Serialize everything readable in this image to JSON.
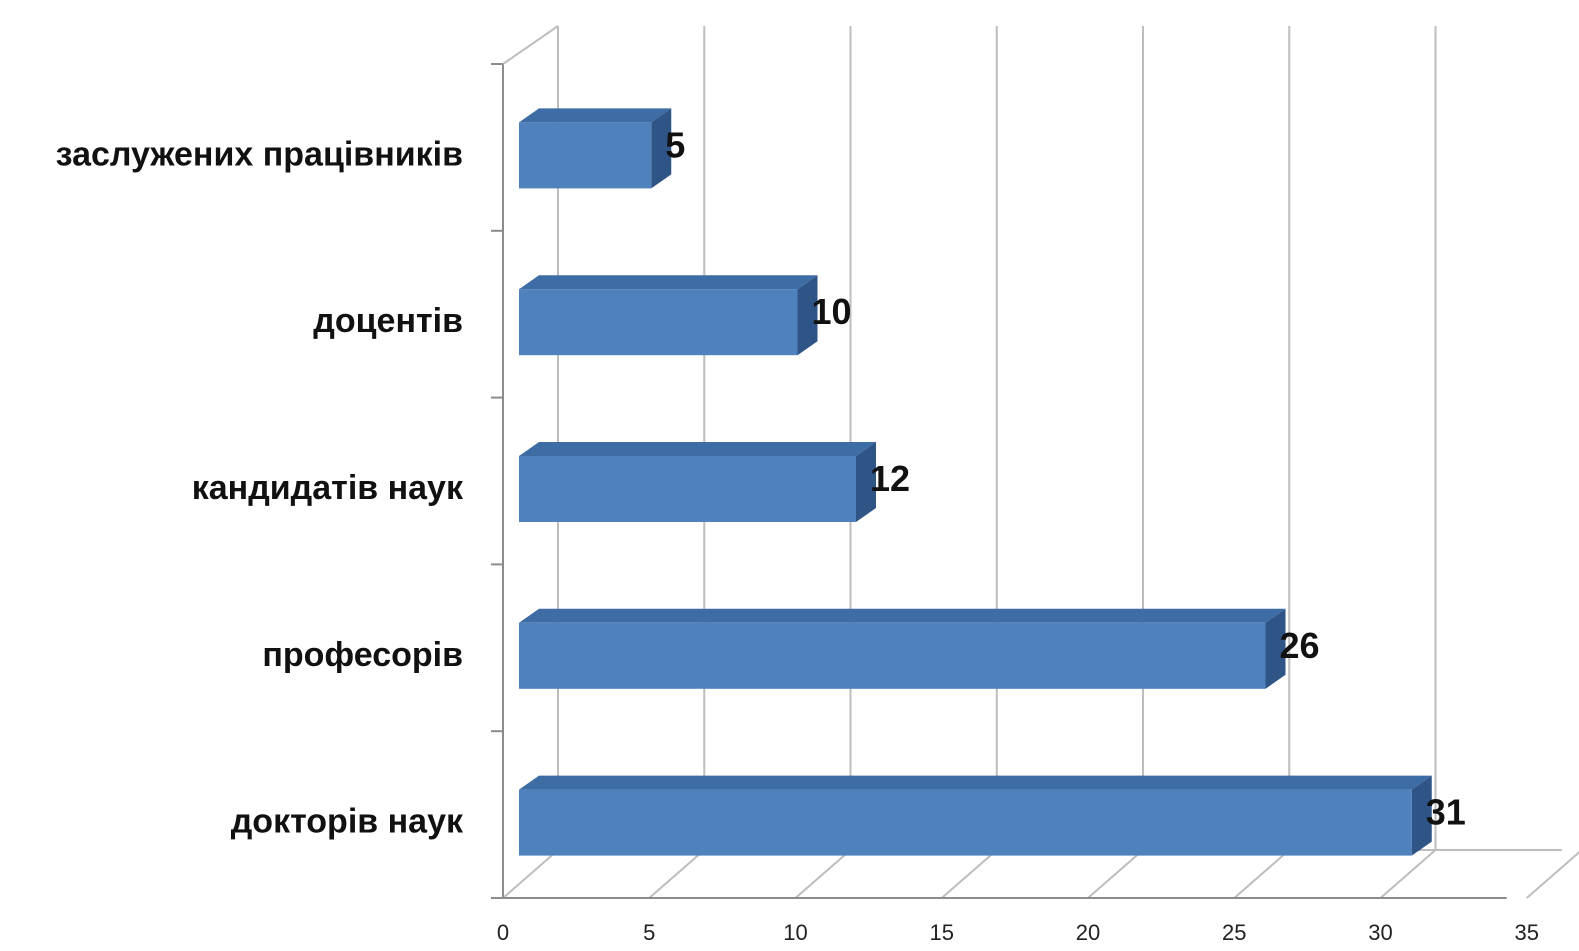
{
  "chart_data": {
    "type": "bar",
    "orientation": "horizontal",
    "style": "3d",
    "categories": [
      "заслужених працівників",
      "доцентів",
      "кандидатів наук",
      "професорів",
      "докторів наук"
    ],
    "values": [
      5,
      10,
      12,
      26,
      31
    ],
    "data_labels": [
      "5",
      "10",
      "12",
      "26",
      "31"
    ],
    "x_ticks": [
      "0",
      "5",
      "10",
      "15",
      "20",
      "25",
      "30",
      "35"
    ],
    "xlim": [
      0,
      35
    ],
    "title": "",
    "xlabel": "",
    "ylabel": "",
    "grid": true,
    "legend": "none",
    "colors": {
      "bar_front": "#4F81BD",
      "bar_top": "#3E6CA5",
      "bar_side": "#2F5587",
      "grid": "#bdbdbd",
      "axis": "#8c8c8c"
    }
  }
}
